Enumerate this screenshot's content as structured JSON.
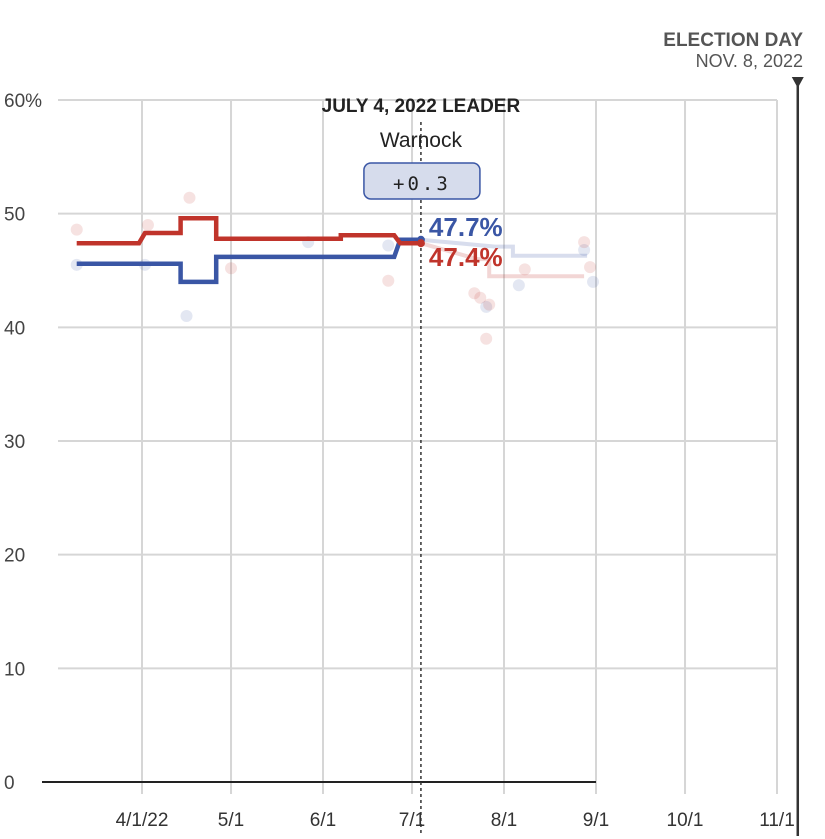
{
  "chart_data": {
    "type": "line",
    "title": "",
    "xlabel": "",
    "ylabel": "",
    "ylim": [
      0,
      60
    ],
    "y_ticks": [
      {
        "value": 60,
        "label": "60%"
      },
      {
        "value": 50,
        "label": "50"
      },
      {
        "value": 40,
        "label": "40"
      },
      {
        "value": 30,
        "label": "30"
      },
      {
        "value": 20,
        "label": "20"
      },
      {
        "value": 10,
        "label": "10"
      },
      {
        "value": 0,
        "label": "0"
      }
    ],
    "x_range": [
      "2022-03-08",
      "2022-11-10"
    ],
    "x_ticks": [
      {
        "date": "2022-04-01",
        "label": "4/1/22"
      },
      {
        "date": "2022-05-01",
        "label": "5/1"
      },
      {
        "date": "2022-06-01",
        "label": "6/1"
      },
      {
        "date": "2022-07-01",
        "label": "7/1"
      },
      {
        "date": "2022-08-01",
        "label": "8/1"
      },
      {
        "date": "2022-09-01",
        "label": "9/1"
      },
      {
        "date": "2022-10-01",
        "label": "10/1"
      },
      {
        "date": "2022-11-01",
        "label": "11/1"
      }
    ],
    "grid": true,
    "election_day": {
      "title": "ELECTION DAY",
      "date_label": "NOV. 8, 2022",
      "date": "2022-11-08"
    },
    "highlight": {
      "date": "2022-07-04",
      "title": "JULY 4, 2022 LEADER",
      "leader": "Warnock",
      "margin": "+0.3",
      "blue_value_label": "47.7%",
      "red_value_label": "47.4%"
    },
    "series": [
      {
        "color": "#3a56a5",
        "points": [
          {
            "x": "2022-03-10",
            "y": 45.6
          },
          {
            "x": "2022-04-01",
            "y": 45.6
          },
          {
            "x": "2022-04-14",
            "y": 45.6
          },
          {
            "x": "2022-04-14",
            "y": 44.0
          },
          {
            "x": "2022-04-26",
            "y": 44.0
          },
          {
            "x": "2022-04-26",
            "y": 46.2
          },
          {
            "x": "2022-06-25",
            "y": 46.2
          },
          {
            "x": "2022-06-27",
            "y": 47.7
          },
          {
            "x": "2022-07-04",
            "y": 47.7
          }
        ],
        "future_points": [
          {
            "x": "2022-07-04",
            "y": 47.7
          },
          {
            "x": "2022-07-29",
            "y": 47.1
          },
          {
            "x": "2022-08-04",
            "y": 47.1
          },
          {
            "x": "2022-08-04",
            "y": 46.3
          },
          {
            "x": "2022-08-29",
            "y": 46.3
          }
        ],
        "polls": [
          {
            "x": "2022-03-10",
            "y": 45.5
          },
          {
            "x": "2022-04-02",
            "y": 45.5
          },
          {
            "x": "2022-04-16",
            "y": 41.0
          },
          {
            "x": "2022-05-27",
            "y": 47.5
          },
          {
            "x": "2022-06-23",
            "y": 47.2
          },
          {
            "x": "2022-07-26",
            "y": 41.8
          },
          {
            "x": "2022-08-06",
            "y": 43.7
          },
          {
            "x": "2022-08-31",
            "y": 44.0
          },
          {
            "x": "2022-08-28",
            "y": 46.8
          }
        ]
      },
      {
        "color": "#c0342b",
        "points": [
          {
            "x": "2022-03-10",
            "y": 47.4
          },
          {
            "x": "2022-03-31",
            "y": 47.4
          },
          {
            "x": "2022-04-02",
            "y": 48.3
          },
          {
            "x": "2022-04-14",
            "y": 48.3
          },
          {
            "x": "2022-04-14",
            "y": 49.6
          },
          {
            "x": "2022-04-26",
            "y": 49.6
          },
          {
            "x": "2022-04-26",
            "y": 47.8
          },
          {
            "x": "2022-06-07",
            "y": 47.8
          },
          {
            "x": "2022-06-07",
            "y": 48.1
          },
          {
            "x": "2022-06-25",
            "y": 48.1
          },
          {
            "x": "2022-06-27",
            "y": 47.4
          },
          {
            "x": "2022-07-04",
            "y": 47.4
          }
        ],
        "future_points": [
          {
            "x": "2022-07-04",
            "y": 47.4
          },
          {
            "x": "2022-07-23",
            "y": 46.0
          },
          {
            "x": "2022-07-27",
            "y": 46.0
          },
          {
            "x": "2022-07-27",
            "y": 44.5
          },
          {
            "x": "2022-08-28",
            "y": 44.5
          }
        ],
        "polls": [
          {
            "x": "2022-03-10",
            "y": 48.6
          },
          {
            "x": "2022-04-03",
            "y": 49.0
          },
          {
            "x": "2022-04-17",
            "y": 51.4
          },
          {
            "x": "2022-05-01",
            "y": 45.2
          },
          {
            "x": "2022-06-23",
            "y": 44.1
          },
          {
            "x": "2022-07-22",
            "y": 43.0
          },
          {
            "x": "2022-07-24",
            "y": 42.6
          },
          {
            "x": "2022-07-26",
            "y": 39.0
          },
          {
            "x": "2022-07-27",
            "y": 42.0
          },
          {
            "x": "2022-08-08",
            "y": 45.1
          },
          {
            "x": "2022-08-28",
            "y": 47.5
          },
          {
            "x": "2022-08-30",
            "y": 45.3
          }
        ]
      }
    ]
  }
}
